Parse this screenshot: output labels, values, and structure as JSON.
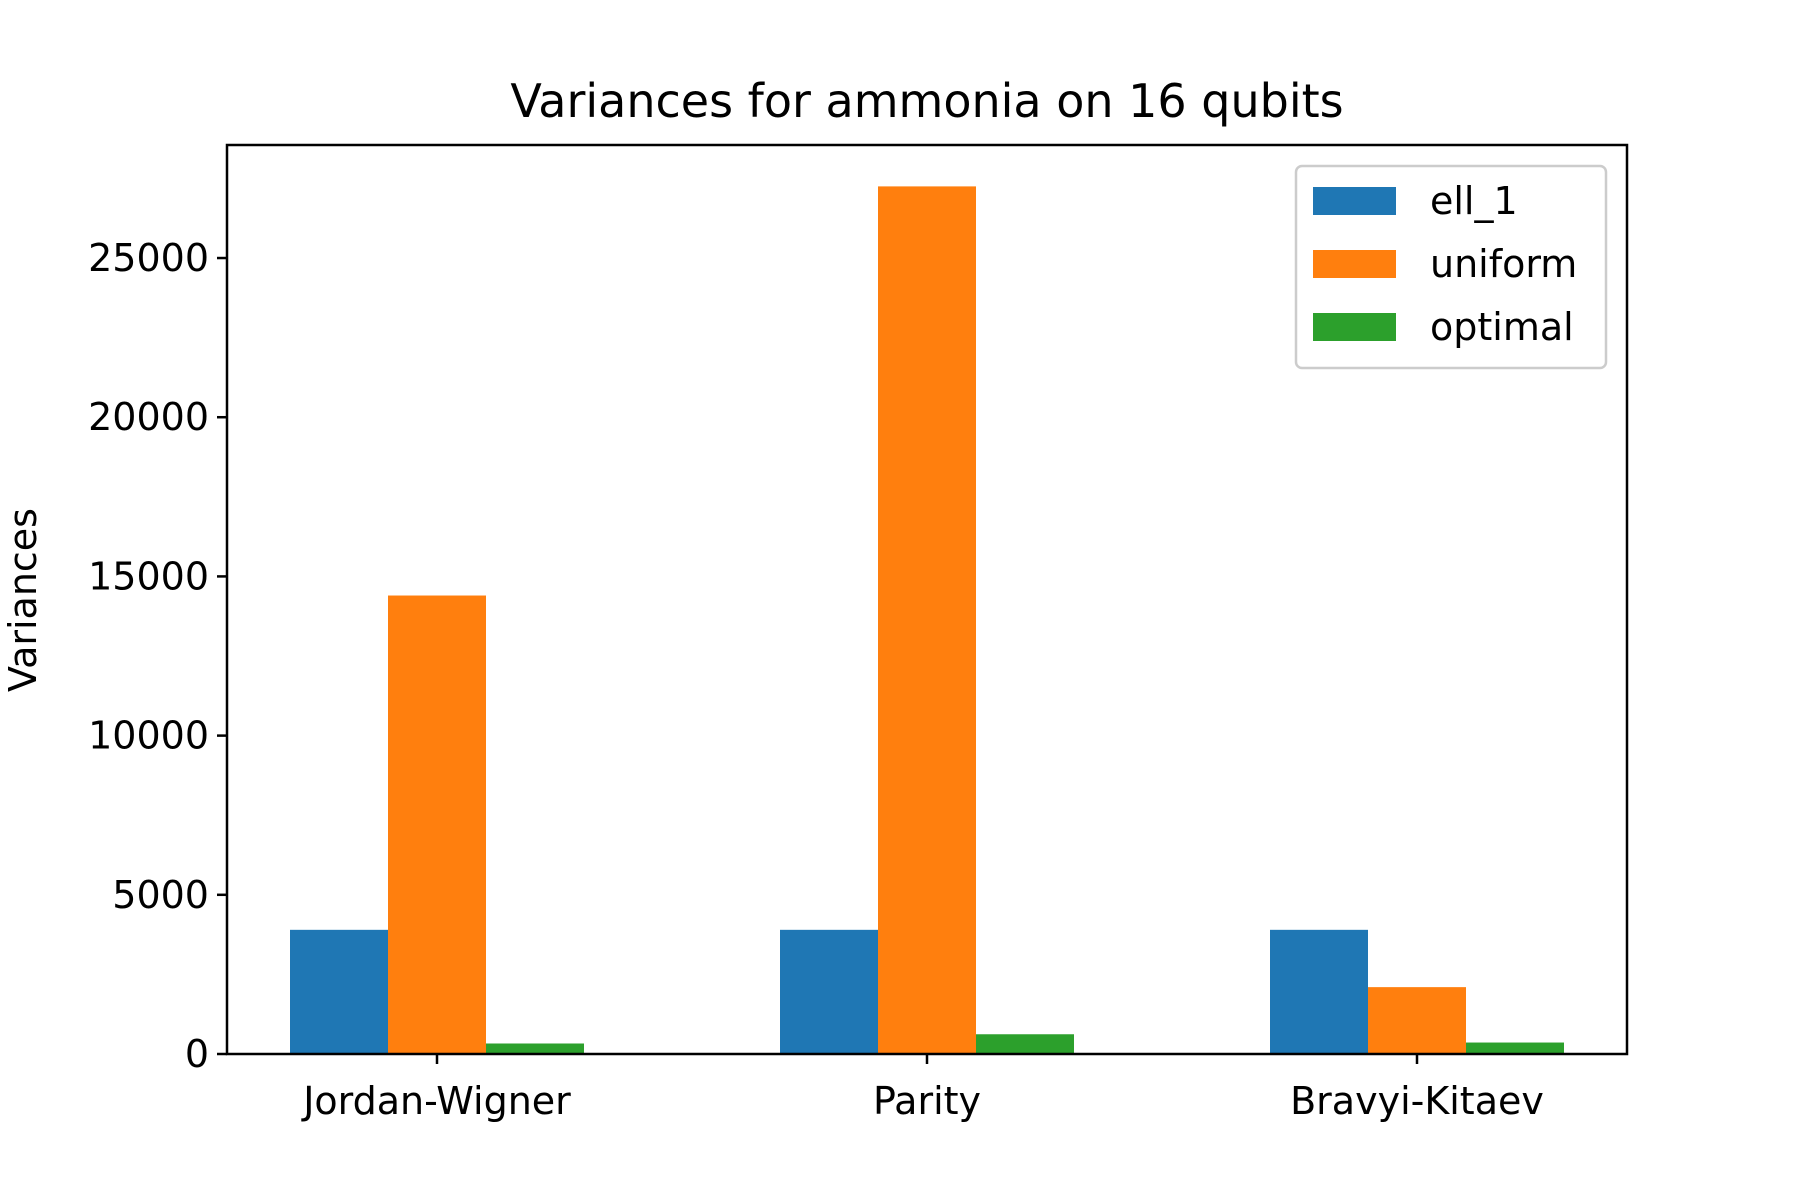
{
  "chart_data": {
    "type": "bar",
    "title": "Variances for ammonia on 16 qubits",
    "xlabel": "",
    "ylabel": "Variances",
    "categories": [
      "Jordan-Wigner",
      "Parity",
      "Bravyi-Kitaev"
    ],
    "series": [
      {
        "name": "ell_1",
        "color": "#1f77b4",
        "values": [
          3900,
          3900,
          3900
        ]
      },
      {
        "name": "uniform",
        "color": "#ff7f0e",
        "values": [
          14400,
          27250,
          2100
        ]
      },
      {
        "name": "optimal",
        "color": "#2ca02c",
        "values": [
          330,
          620,
          360
        ]
      }
    ],
    "ylim": [
      0,
      28550
    ],
    "yticks": [
      0,
      5000,
      10000,
      15000,
      20000,
      25000
    ],
    "grid": false,
    "legend_position": "top-right"
  }
}
